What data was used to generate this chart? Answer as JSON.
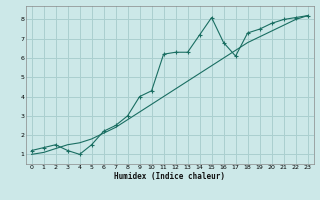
{
  "xlabel": "Humidex (Indice chaleur)",
  "ylabel": "",
  "bg_color": "#cce8e8",
  "grid_color": "#aacfcf",
  "line_color": "#1a6e62",
  "xlim": [
    -0.5,
    23.5
  ],
  "ylim": [
    0.5,
    8.7
  ],
  "xticks": [
    0,
    1,
    2,
    3,
    4,
    5,
    6,
    7,
    8,
    9,
    10,
    11,
    12,
    13,
    14,
    15,
    16,
    17,
    18,
    19,
    20,
    21,
    22,
    23
  ],
  "yticks": [
    1,
    2,
    3,
    4,
    5,
    6,
    7,
    8
  ],
  "series1_x": [
    0,
    1,
    2,
    3,
    4,
    5,
    6,
    7,
    8,
    9,
    10,
    11,
    12,
    13,
    14,
    15,
    16,
    17,
    18,
    19,
    20,
    21,
    22,
    23
  ],
  "series1_y": [
    1.2,
    1.35,
    1.5,
    1.2,
    1.0,
    1.5,
    2.2,
    2.5,
    3.0,
    4.0,
    4.3,
    6.2,
    6.3,
    6.3,
    7.2,
    8.1,
    6.8,
    6.1,
    7.3,
    7.5,
    7.8,
    8.0,
    8.1,
    8.2
  ],
  "series2_x": [
    0,
    1,
    2,
    3,
    4,
    5,
    6,
    7,
    8,
    9,
    10,
    11,
    12,
    13,
    14,
    15,
    16,
    17,
    18,
    19,
    20,
    21,
    22,
    23
  ],
  "series2_y": [
    1.0,
    1.1,
    1.3,
    1.5,
    1.6,
    1.8,
    2.1,
    2.4,
    2.8,
    3.2,
    3.6,
    4.0,
    4.4,
    4.8,
    5.2,
    5.6,
    6.0,
    6.4,
    6.8,
    7.1,
    7.4,
    7.7,
    8.0,
    8.2
  ]
}
